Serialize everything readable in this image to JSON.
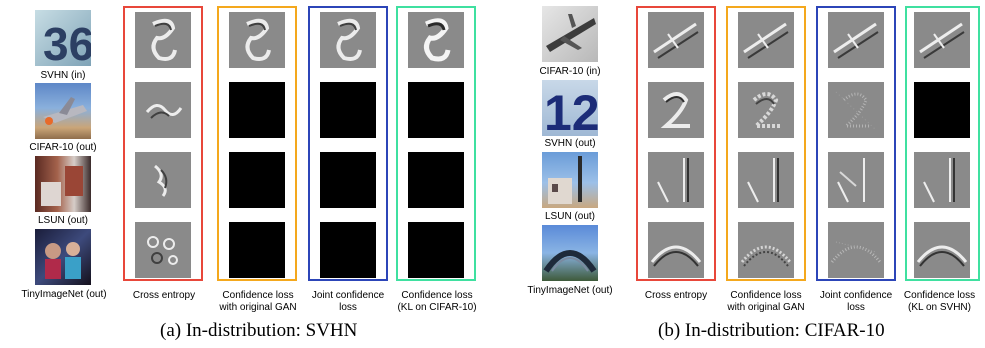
{
  "colors": {
    "cross_entropy": "#e8473a",
    "confidence_original_gan": "#f4a81d",
    "joint_confidence": "#2c45b8",
    "confidence_kl": "#3fe0a0"
  },
  "panel_a": {
    "caption": "(a) In-distribution: SVHN",
    "inputs": [
      {
        "label": "SVHN (in)",
        "icon": "svhn-digit-image"
      },
      {
        "label": "CIFAR-10 (out)",
        "icon": "airplane-image"
      },
      {
        "label": "LSUN (out)",
        "icon": "indoor-scene-image"
      },
      {
        "label": "TinyImageNet (out)",
        "icon": "people-image"
      }
    ],
    "columns": [
      {
        "label": "Cross entropy"
      },
      {
        "label": "Confidence loss\nwith original GAN"
      },
      {
        "label": "Joint confidence\nloss"
      },
      {
        "label": "Confidence loss\n(KL on CIFAR-10)"
      }
    ]
  },
  "panel_b": {
    "caption": "(b) In-distribution: CIFAR-10",
    "inputs": [
      {
        "label": "CIFAR-10 (in)",
        "icon": "airplane-image"
      },
      {
        "label": "SVHN (out)",
        "icon": "svhn-digit-image"
      },
      {
        "label": "LSUN (out)",
        "icon": "tower-image"
      },
      {
        "label": "TinyImageNet (out)",
        "icon": "arch-structure-image"
      }
    ],
    "columns": [
      {
        "label": "Cross entropy"
      },
      {
        "label": "Confidence loss\nwith original GAN"
      },
      {
        "label": "Joint confidence\nloss"
      },
      {
        "label": "Confidence loss\n(KL on SVHN)"
      }
    ]
  }
}
